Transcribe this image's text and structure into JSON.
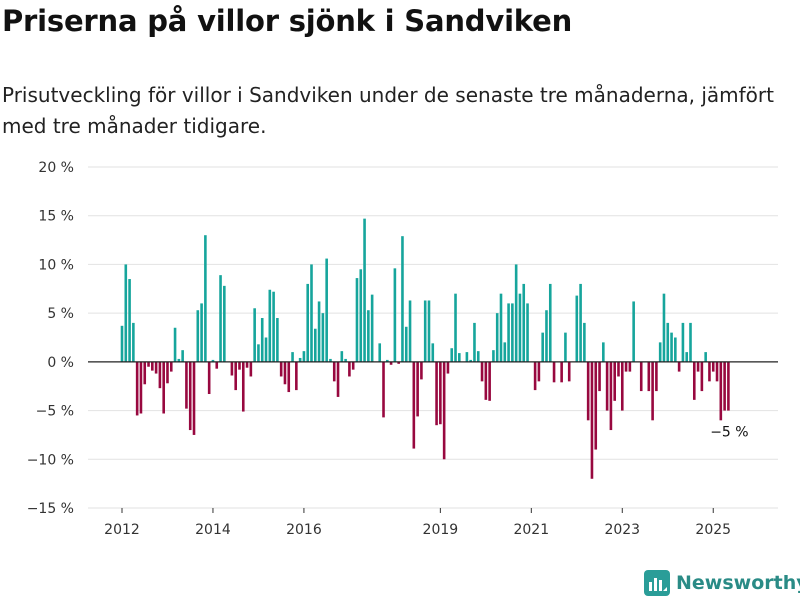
{
  "title": "Priserna på villor sjönk i Sandviken",
  "subtitle": "Prisutveckling för villor i Sandviken under de senaste tre månaderna, jämfört med tre månader tidigare.",
  "brand": {
    "name": "Newsworthy",
    "color": "#2a9d98"
  },
  "colors": {
    "positive": "#16a59c",
    "negative": "#98083f",
    "zero_line": "#222222",
    "grid": "#e2e2e2"
  },
  "chart_data": {
    "type": "bar",
    "x_start": "2012-01",
    "x_step": "month",
    "yticks": [
      "20 %",
      "15 %",
      "10 %",
      "5 %",
      "0 %",
      "−5 %",
      "−10 %",
      "−15 %"
    ],
    "ytick_values": [
      20,
      15,
      10,
      5,
      0,
      -5,
      -10,
      -15
    ],
    "xticks": [
      "2012",
      "2014",
      "2016",
      "2019",
      "2021",
      "2023",
      "2025"
    ],
    "ylim": [
      -15,
      20
    ],
    "grid": true,
    "annotation": "−5 %",
    "values": [
      3.7,
      10.0,
      8.5,
      4.0,
      -5.5,
      -5.3,
      -2.3,
      -0.5,
      -0.9,
      -1.2,
      -2.7,
      -5.3,
      -2.2,
      -1.0,
      3.5,
      0.3,
      1.2,
      -4.8,
      -7.0,
      -7.5,
      5.3,
      6.0,
      13.0,
      -3.3,
      0.2,
      -0.7,
      8.9,
      7.8,
      0.0,
      -1.4,
      -2.9,
      -0.8,
      -5.1,
      -0.6,
      -1.5,
      5.5,
      1.8,
      4.5,
      2.5,
      7.4,
      7.2,
      4.5,
      -1.5,
      -2.3,
      -3.1,
      1.0,
      -2.9,
      0.4,
      1.1,
      8.0,
      10.0,
      3.4,
      6.2,
      5.0,
      10.6,
      0.3,
      -2.0,
      -3.6,
      1.1,
      0.3,
      -1.5,
      -0.8,
      8.6,
      9.5,
      14.7,
      5.3,
      6.9,
      0.0,
      1.9,
      -5.7,
      0.2,
      -0.3,
      9.6,
      -0.2,
      12.9,
      3.6,
      6.3,
      -8.9,
      -5.6,
      -1.8,
      6.3,
      6.3,
      1.9,
      -6.5,
      -6.4,
      -10.0,
      -1.2,
      1.4,
      7.0,
      0.9,
      0.0,
      1.0,
      0.2,
      4.0,
      1.1,
      -2.0,
      -3.9,
      -4.0,
      1.2,
      5.0,
      7.0,
      2.0,
      6.0,
      6.0,
      10.0,
      7.0,
      8.0,
      6.0,
      0.0,
      -2.9,
      -2.0,
      3.0,
      5.3,
      8.0,
      -2.1,
      0.0,
      -2.1,
      3.0,
      -2.0,
      0.0,
      6.8,
      8.0,
      4.0,
      -6.0,
      -12.0,
      -9.0,
      -3.0,
      2.0,
      -5.0,
      -7.0,
      -4.0,
      -1.5,
      -5.0,
      -1.0,
      -1.0,
      6.2,
      0.0,
      -3.0,
      0.0,
      -3.0,
      -6.0,
      -3.0,
      2.0,
      7.0,
      4.0,
      3.0,
      2.5,
      -1.0,
      4.0,
      1.0,
      4.0,
      -3.9,
      -1.0,
      -3.0,
      1.0,
      -2.0,
      -1.0,
      -2.0,
      -6.0,
      -5.0,
      -5.0
    ]
  }
}
